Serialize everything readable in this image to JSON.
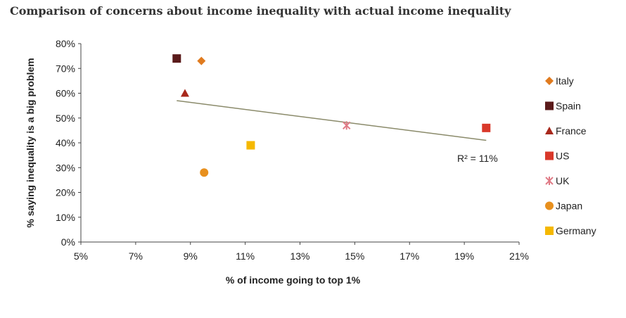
{
  "title": "Comparison of concerns about income inequality with actual income inequality",
  "chart_data": {
    "type": "scatter",
    "title": "Comparison of concerns about income inequality with actual income inequality",
    "xlabel": "% of income going to top 1%",
    "ylabel": "% saying inequality is a big problem",
    "xlim": [
      5,
      21
    ],
    "ylim": [
      0,
      80
    ],
    "x_ticks": [
      5,
      7,
      9,
      11,
      13,
      15,
      17,
      19,
      21
    ],
    "x_tick_labels": [
      "5%",
      "7%",
      "9%",
      "11%",
      "13%",
      "15%",
      "17%",
      "19%",
      "21%"
    ],
    "y_ticks": [
      0,
      10,
      20,
      30,
      40,
      50,
      60,
      70,
      80
    ],
    "y_tick_labels": [
      "0%",
      "10%",
      "20%",
      "30%",
      "40%",
      "50%",
      "60%",
      "70%",
      "80%"
    ],
    "grid": false,
    "legend_position": "right",
    "series": [
      {
        "name": "Italy",
        "marker": "diamond",
        "color": "#E07B1F",
        "x": 9.4,
        "y": 73
      },
      {
        "name": "Spain",
        "marker": "square",
        "color": "#5A1A1A",
        "x": 8.5,
        "y": 74
      },
      {
        "name": "France",
        "marker": "triangle",
        "color": "#A8281C",
        "x": 8.8,
        "y": 60
      },
      {
        "name": "US",
        "marker": "square",
        "color": "#D9382A",
        "x": 19.8,
        "y": 46
      },
      {
        "name": "UK",
        "marker": "star",
        "color": "#E07A86",
        "x": 14.7,
        "y": 47
      },
      {
        "name": "Japan",
        "marker": "circle",
        "color": "#E8901E",
        "x": 9.5,
        "y": 28
      },
      {
        "name": "Germany",
        "marker": "square",
        "color": "#F5B800",
        "x": 11.2,
        "y": 39
      }
    ],
    "trendline": {
      "x": [
        8.5,
        19.8
      ],
      "y": [
        57,
        41
      ],
      "color": "#8A8A6A"
    },
    "annotation": "R² = 11%"
  }
}
